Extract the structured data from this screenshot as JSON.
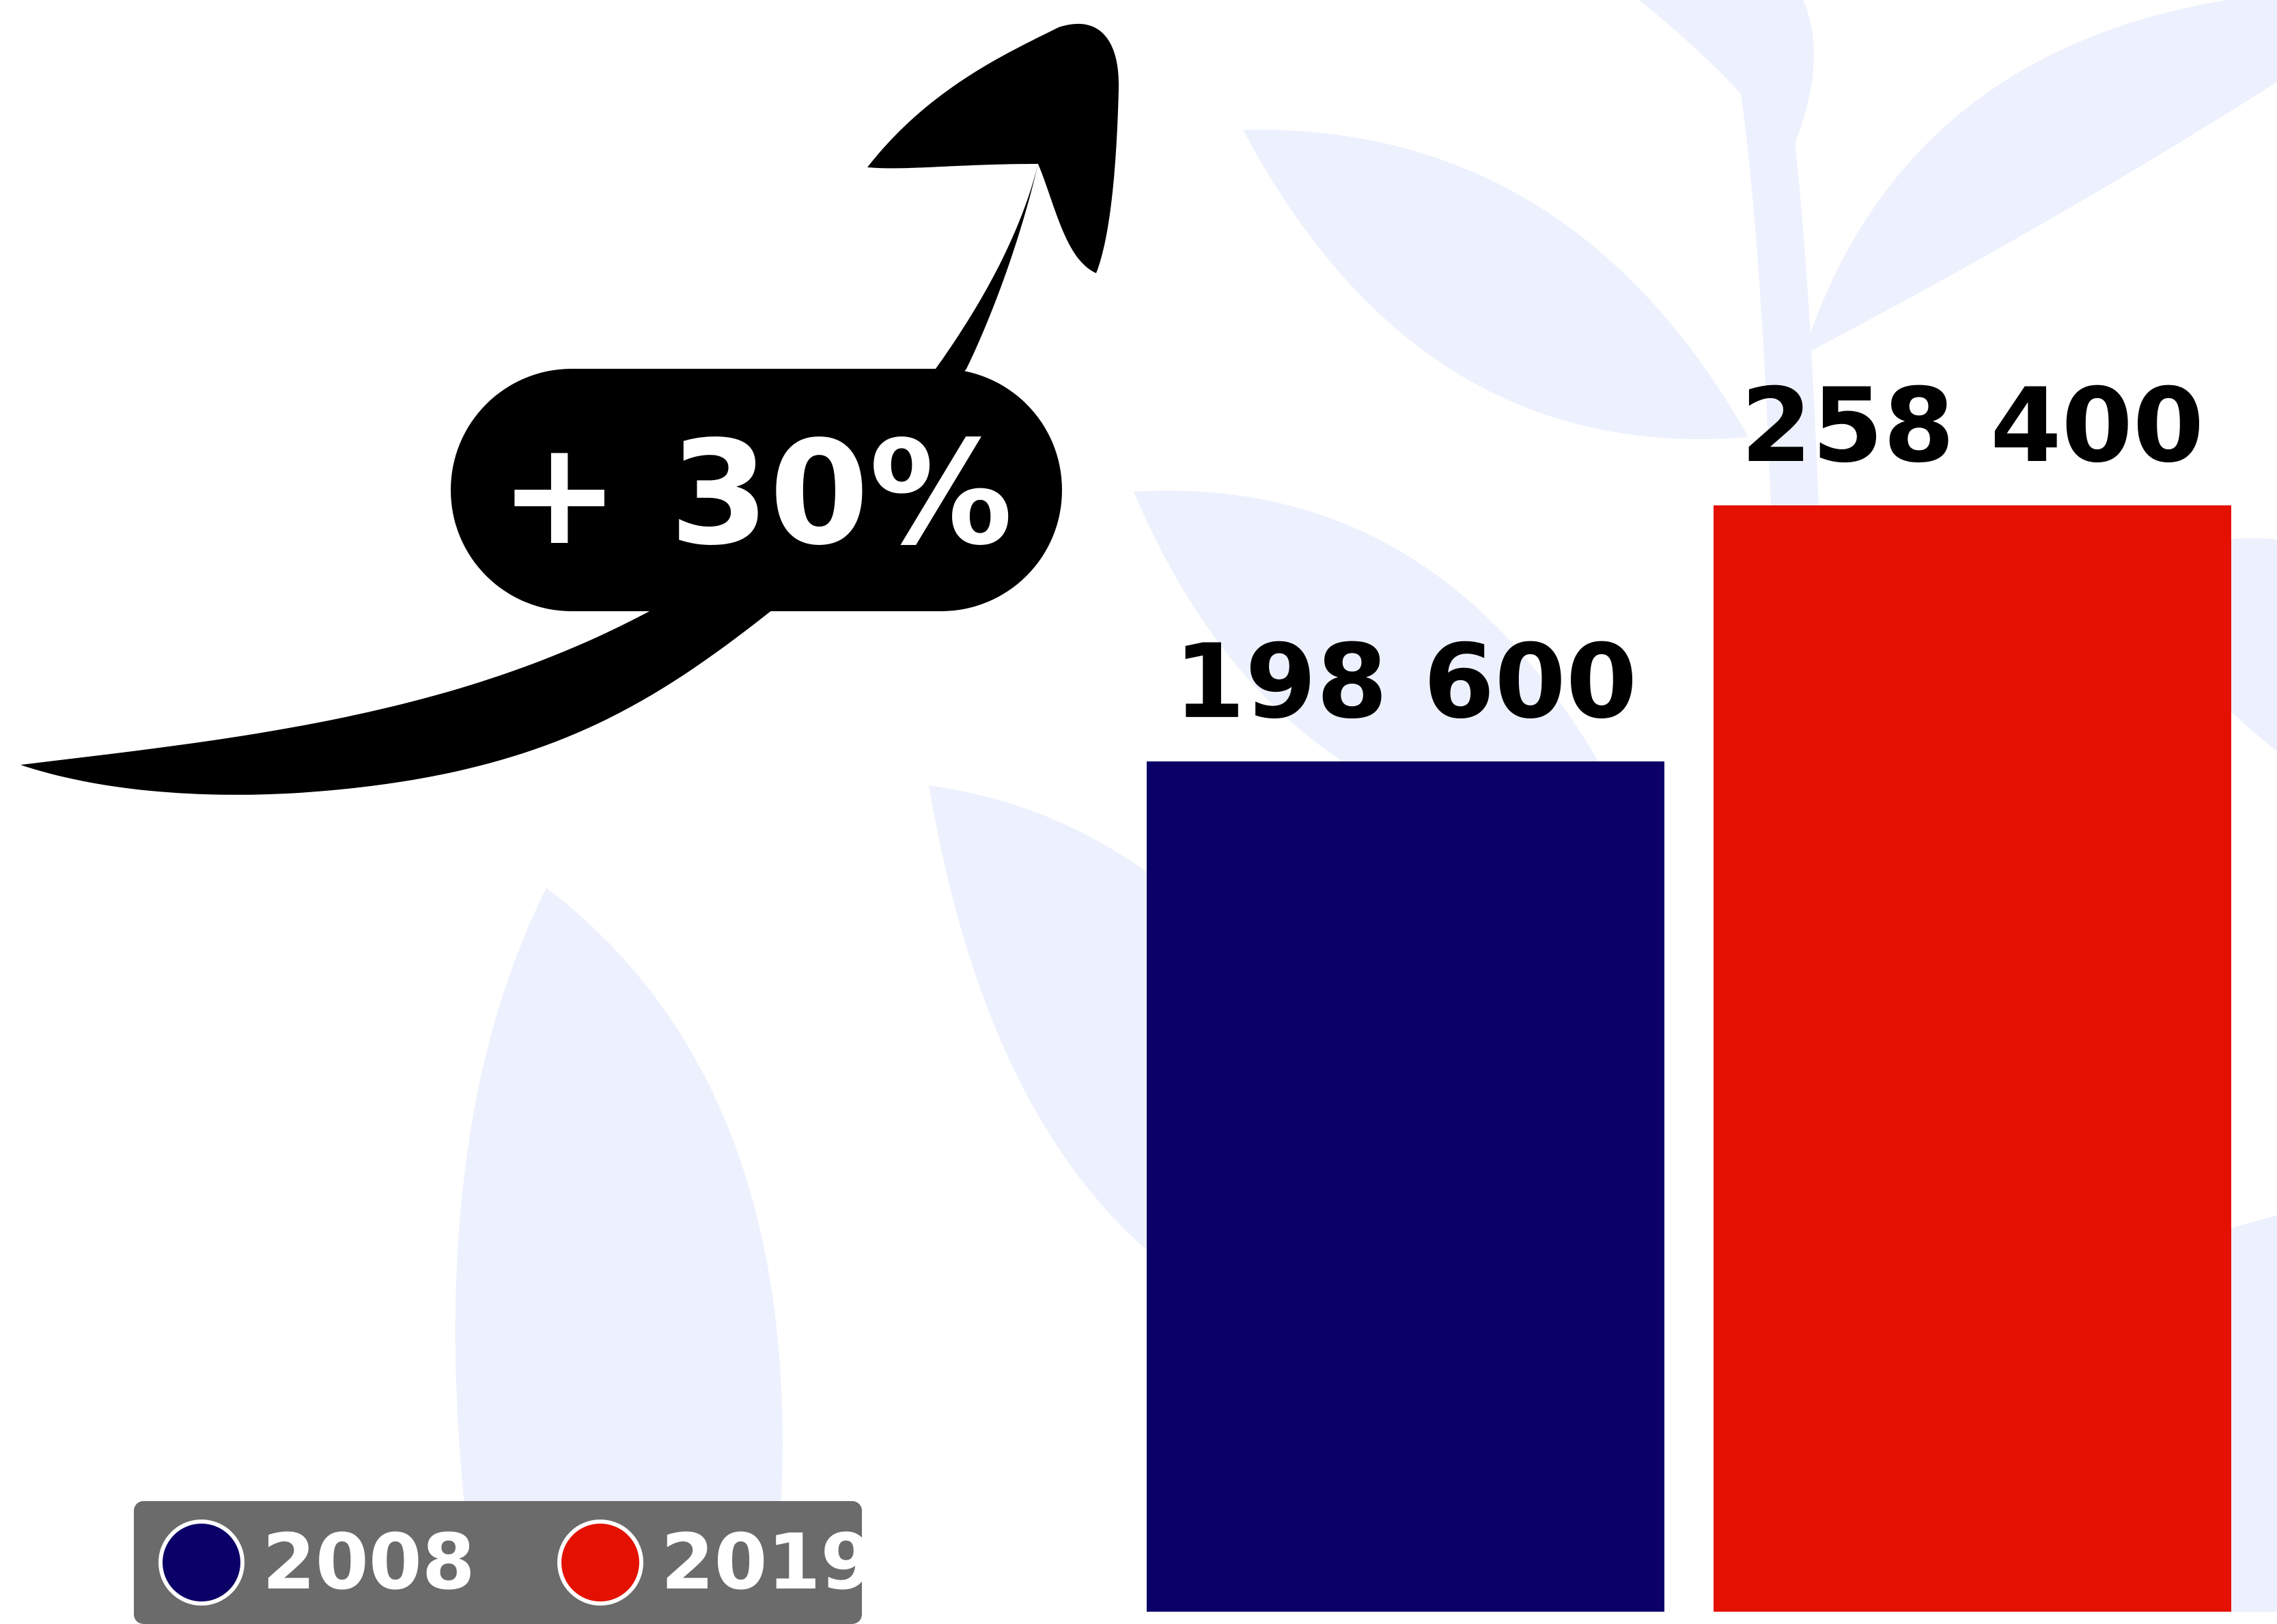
{
  "chart_data": {
    "type": "bar",
    "categories": [
      "2008",
      "2019"
    ],
    "values": [
      198600,
      258400
    ],
    "value_labels": [
      "198 600",
      "258 400"
    ],
    "colors": [
      "#0b0068",
      "#e41100"
    ],
    "annotation": "+ 30%",
    "legend": {
      "placement": "bottom-left",
      "entries": [
        {
          "label": "2008",
          "color": "#0b0068"
        },
        {
          "label": "2019",
          "color": "#e41100"
        }
      ]
    },
    "axes_visible": false,
    "grid": false
  }
}
